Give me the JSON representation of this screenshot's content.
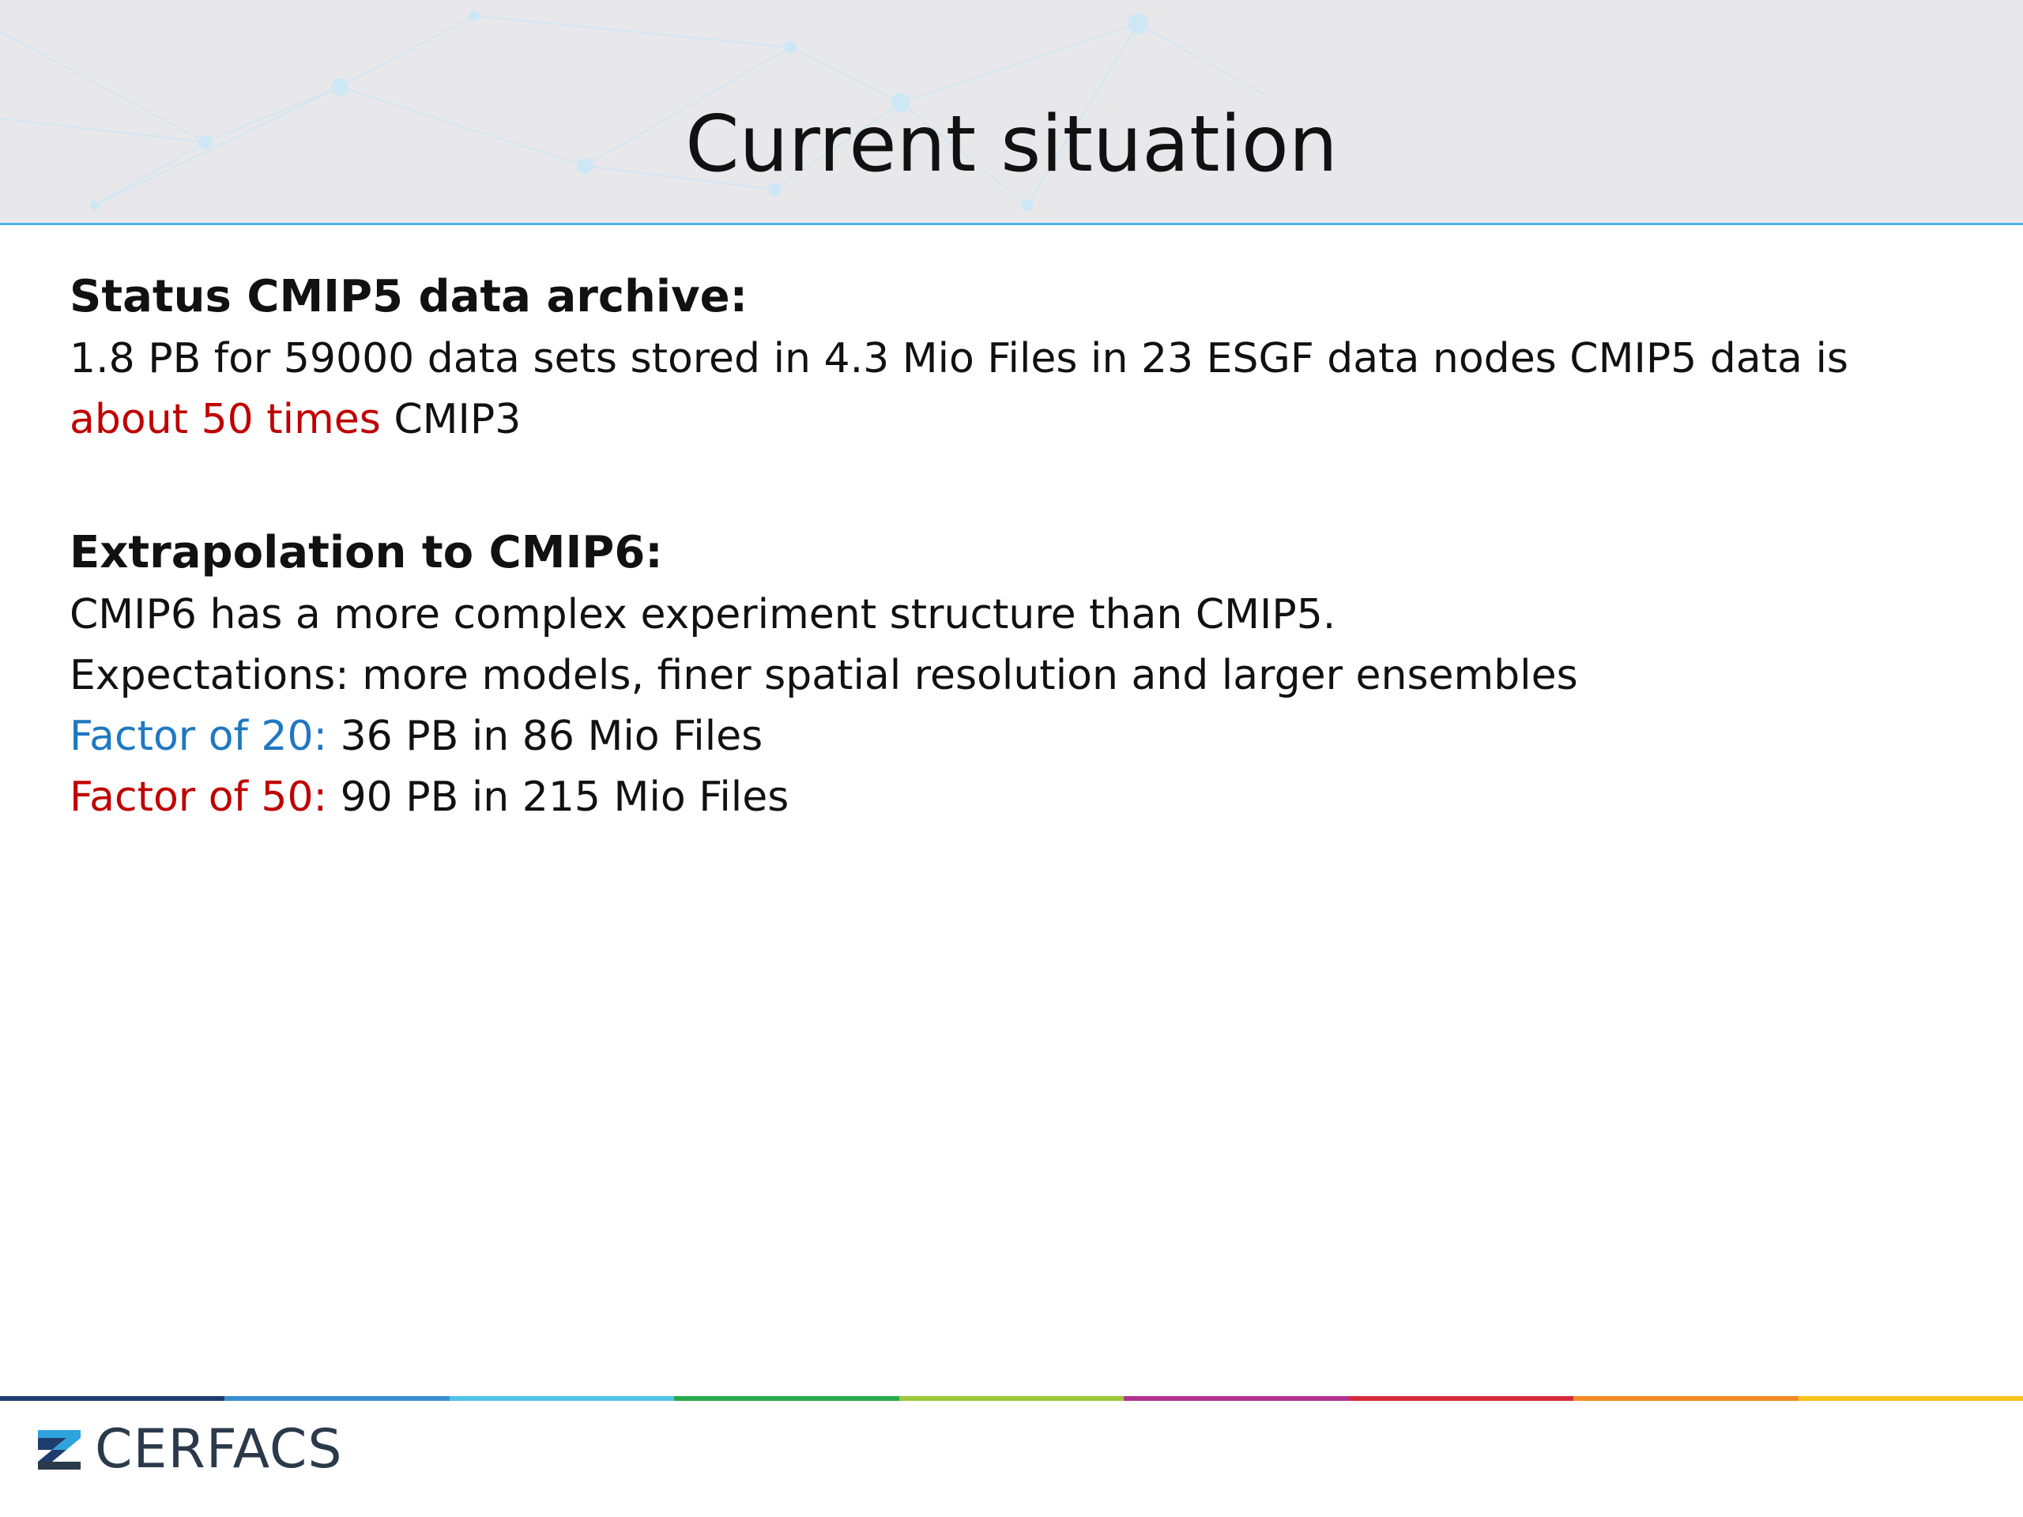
{
  "slide": {
    "title": "Current situation"
  },
  "section1": {
    "heading": "Status CMIP5 data archive:",
    "line1": "1.8 PB for 59000 data sets stored in 4.3 Mio Files in 23 ESGF data nodes CMIP5 data is",
    "line2_highlight": "about 50 times",
    "line2_rest": " CMIP3"
  },
  "section2": {
    "heading": "Extrapolation to CMIP6:",
    "line1": "CMIP6 has a more complex experiment structure than CMIP5.",
    "line2": "Expectations: more models, finer spatial resolution and larger ensembles",
    "factor20_label": "Factor of 20:",
    "factor20_value": " 36 PB in 86 Mio Files",
    "factor50_label": "Factor of 50:",
    "factor50_value": " 90 PB in 215 Mio Files"
  },
  "footer": {
    "logo_text": "CERFACS",
    "bar_colors": [
      "#1f3c6e",
      "#3a8fd0",
      "#4fc3e8",
      "#2aa84a",
      "#9bc93a",
      "#b0338f",
      "#d62a3a",
      "#f08a24",
      "#f6c21c"
    ]
  },
  "colors": {
    "highlight_red": "#c00000",
    "highlight_blue": "#1f78c1",
    "header_bg": "#e8e8ea",
    "header_border": "#4fb3e6"
  }
}
